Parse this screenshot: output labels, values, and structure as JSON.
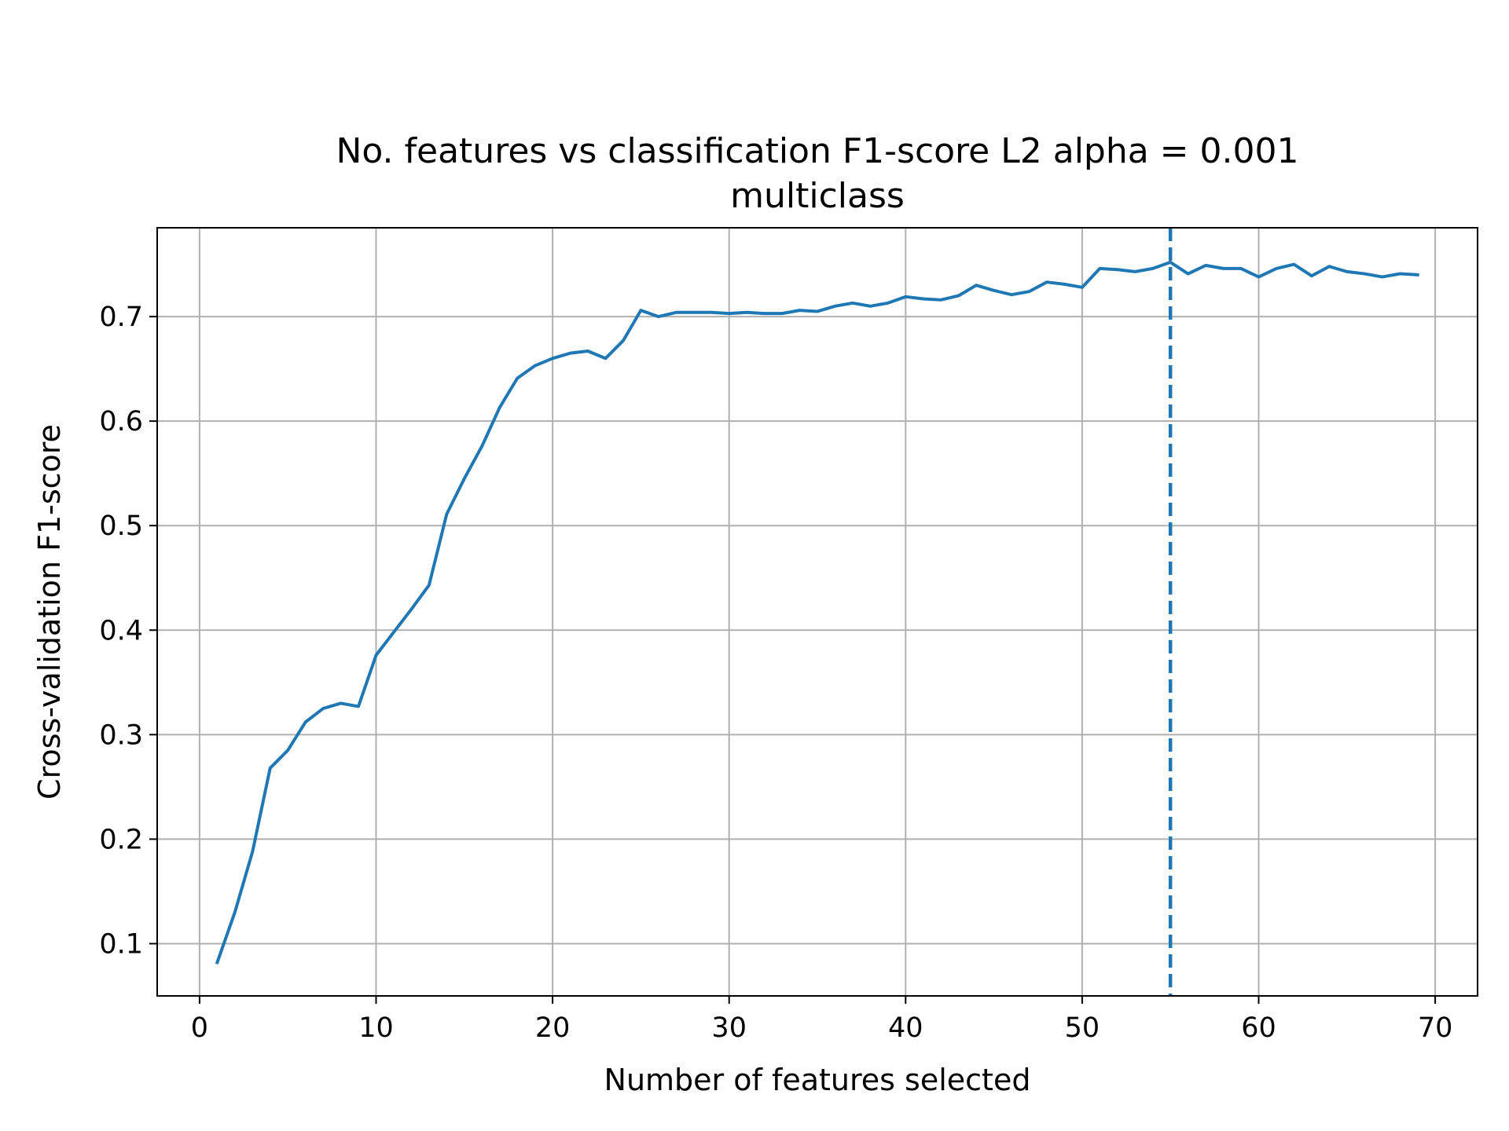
{
  "chart_data": {
    "type": "line",
    "title": "No. features vs classification F1-score L2 alpha = 0.001",
    "subtitle": "multiclass",
    "xlabel": "Number of features selected",
    "ylabel": "Cross-validation F1-score",
    "xlim": [
      -2.4,
      72.4
    ],
    "ylim": [
      0.05,
      0.785
    ],
    "xticks": [
      0,
      10,
      20,
      30,
      40,
      50,
      60,
      70
    ],
    "yticks": [
      0.1,
      0.2,
      0.3,
      0.4,
      0.5,
      0.6,
      0.7
    ],
    "grid": true,
    "series_color": "#1f77b4",
    "series": [
      {
        "x": [
          1,
          2,
          3,
          4,
          5,
          6,
          7,
          8,
          9,
          10,
          11,
          12,
          13,
          14,
          15,
          16,
          17,
          18,
          19,
          20,
          21,
          22,
          23,
          24,
          25,
          26,
          27,
          28,
          29,
          30,
          31,
          32,
          33,
          34,
          35,
          36,
          37,
          38,
          39,
          40,
          41,
          42,
          43,
          44,
          45,
          46,
          47,
          48,
          49,
          50,
          51,
          52,
          53,
          54,
          55,
          56,
          57,
          58,
          59,
          60,
          61,
          62,
          63,
          64,
          65,
          66,
          67,
          68,
          69
        ],
        "values": [
          0.082,
          0.13,
          0.188,
          0.268,
          0.285,
          0.312,
          0.325,
          0.33,
          0.327,
          0.376,
          0.398,
          0.42,
          0.443,
          0.511,
          0.545,
          0.576,
          0.613,
          0.641,
          0.653,
          0.66,
          0.665,
          0.667,
          0.66,
          0.677,
          0.706,
          0.7,
          0.704,
          0.704,
          0.704,
          0.703,
          0.704,
          0.703,
          0.703,
          0.706,
          0.705,
          0.71,
          0.713,
          0.71,
          0.713,
          0.719,
          0.717,
          0.716,
          0.72,
          0.73,
          0.725,
          0.721,
          0.724,
          0.733,
          0.731,
          0.728,
          0.746,
          0.745,
          0.743,
          0.746,
          0.752,
          0.741,
          0.749,
          0.746,
          0.746,
          0.738,
          0.746,
          0.75,
          0.739,
          0.748,
          0.743,
          0.741,
          0.738,
          0.741,
          0.74
        ]
      }
    ],
    "vline": {
      "x": 55,
      "style": "dashed"
    }
  }
}
